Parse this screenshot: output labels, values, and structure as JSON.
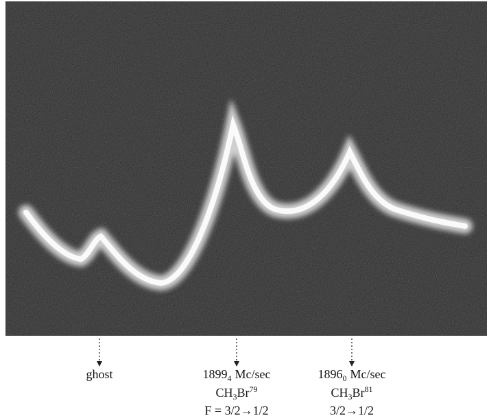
{
  "figure": {
    "labels": [
      {
        "name": "ghost"
      },
      {
        "frequency": {
          "main": "1899",
          "sub": "4",
          "unit": "Mc/sec"
        },
        "molecule": {
          "formula": "CH",
          "sub": "3",
          "element": "Br",
          "sup": "79"
        },
        "transition": "F = 3/2→1/2"
      },
      {
        "frequency": {
          "main": "1896",
          "sub": "0",
          "unit": "Mc/sec"
        },
        "molecule": {
          "formula": "CH",
          "sub": "3",
          "element": "Br",
          "sup": "81"
        },
        "transition": "3/2→1/2"
      }
    ]
  }
}
